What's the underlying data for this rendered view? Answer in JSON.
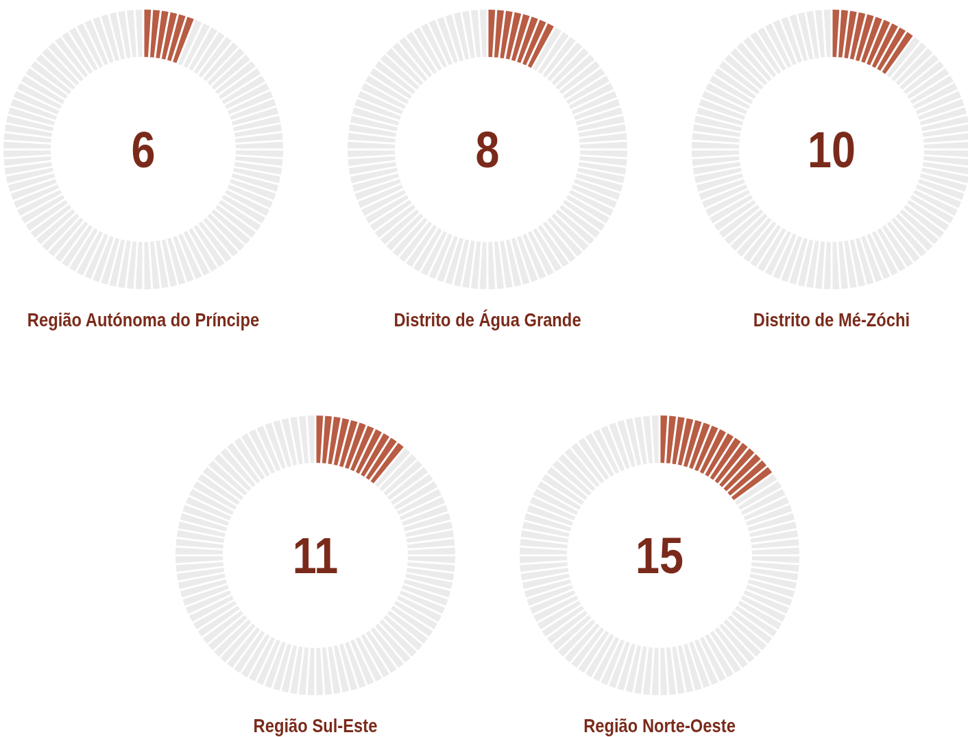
{
  "chart_data": [
    {
      "type": "donut",
      "title": "Região Autónoma do Príncipe",
      "categories": [
        null,
        null
      ],
      "values": [
        6,
        94
      ],
      "colors": [
        "#b85c44",
        "#ebebeb"
      ],
      "annotations": [
        "6"
      ]
    },
    {
      "type": "donut",
      "title": "Distrito de Água Grande",
      "categories": [
        null,
        null
      ],
      "values": [
        8,
        92
      ],
      "colors": [
        "#b85c44",
        "#ebebeb"
      ],
      "annotations": [
        "8"
      ]
    },
    {
      "type": "donut",
      "title": "Distrito de Mé-Zóchi",
      "categories": [
        null,
        null
      ],
      "values": [
        10,
        90
      ],
      "colors": [
        "#b85c44",
        "#ebebeb"
      ],
      "annotations": [
        "10"
      ]
    },
    {
      "type": "donut",
      "title": "Região Sul-Este",
      "categories": [
        null,
        null
      ],
      "values": [
        11,
        89
      ],
      "colors": [
        "#b85c44",
        "#ebebeb"
      ],
      "annotations": [
        "11"
      ]
    },
    {
      "type": "donut",
      "title": "Região Norte-Oeste",
      "categories": [
        null,
        null
      ],
      "values": [
        15,
        85
      ],
      "colors": [
        "#b85c44",
        "#ebebeb"
      ],
      "annotations": [
        "15"
      ]
    }
  ]
}
